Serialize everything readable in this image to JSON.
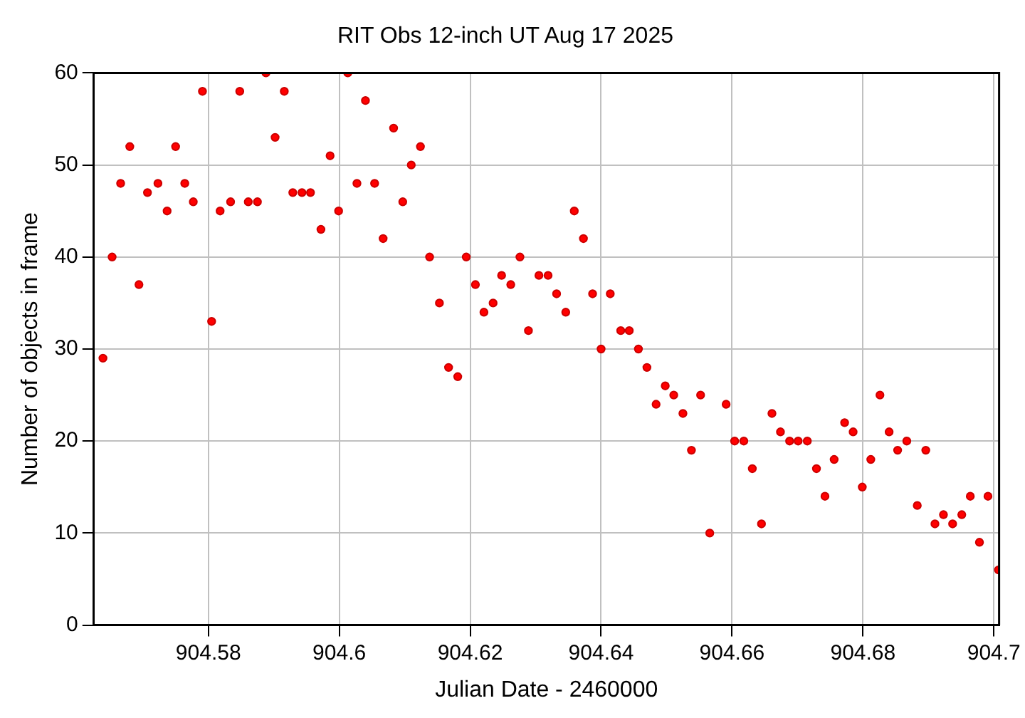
{
  "chart_data": {
    "type": "scatter",
    "title": "RIT Obs 12-inch UT Aug 17 2025",
    "xlabel": "Julian Date - 2460000",
    "ylabel": "Number of objects in frame",
    "x": [
      904.5639,
      904.5653,
      904.5666,
      904.568,
      904.5694,
      904.5707,
      904.5723,
      904.5737,
      904.575,
      904.5764,
      904.5777,
      904.5791,
      904.5805,
      904.5818,
      904.5834,
      904.5848,
      904.5861,
      904.5875,
      904.5888,
      904.5902,
      904.5916,
      904.5929,
      904.5943,
      904.5956,
      904.5972,
      904.5986,
      904.5999,
      904.6013,
      904.6027,
      904.604,
      904.6054,
      904.6067,
      904.6083,
      904.6097,
      904.611,
      904.6124,
      904.6138,
      904.6153,
      904.6167,
      904.6181,
      904.6194,
      904.6208,
      904.6221,
      904.6235,
      904.6248,
      904.6262,
      904.6276,
      904.6289,
      904.6305,
      904.6319,
      904.6332,
      904.6346,
      904.6359,
      904.6373,
      904.6387,
      904.64,
      904.6414,
      904.643,
      904.6443,
      904.6457,
      904.647,
      904.6484,
      904.6498,
      904.6511,
      904.6525,
      904.6538,
      904.6552,
      904.6566,
      904.6591,
      904.6604,
      904.6618,
      904.6631,
      904.6645,
      904.6661,
      904.6674,
      904.6688,
      904.6701,
      904.6715,
      904.6729,
      904.6742,
      904.6756,
      904.6772,
      904.6785,
      904.6799,
      904.6812,
      904.6826,
      904.684,
      904.6853,
      904.6867,
      904.6883,
      904.6896,
      904.691,
      904.6923,
      904.6937,
      904.6951,
      904.6964,
      904.6978,
      904.6991,
      904.7007
    ],
    "series": [
      {
        "color": "#ff0000",
        "values": [
          29,
          40,
          48,
          52,
          37,
          47,
          48,
          45,
          52,
          48,
          46,
          58,
          33,
          45,
          46,
          58,
          46,
          46,
          60,
          53,
          58,
          47,
          47,
          47,
          43,
          51,
          45,
          60,
          48,
          57,
          48,
          42,
          54,
          46,
          50,
          52,
          40,
          35,
          28,
          27,
          40,
          37,
          34,
          35,
          38,
          37,
          40,
          32,
          38,
          38,
          36,
          34,
          45,
          42,
          36,
          30,
          36,
          32,
          32,
          30,
          28,
          24,
          26,
          25,
          23,
          19,
          25,
          10,
          24,
          20,
          20,
          17,
          11,
          23,
          21,
          20,
          20,
          20,
          17,
          14,
          18,
          22,
          21,
          15,
          18,
          25,
          21,
          19,
          20,
          13,
          19,
          11,
          12,
          11,
          12,
          14,
          9,
          14,
          6
        ]
      }
    ],
    "xlim": [
      904.5625,
      904.7008
    ],
    "xticks": [
      904.58,
      904.6,
      904.62,
      904.64,
      904.66,
      904.68,
      904.7
    ],
    "ylim": [
      0,
      60
    ],
    "yticks": [
      0,
      10,
      20,
      30,
      40,
      50,
      60
    ],
    "grid": true,
    "legend": false,
    "marker": "circle"
  }
}
